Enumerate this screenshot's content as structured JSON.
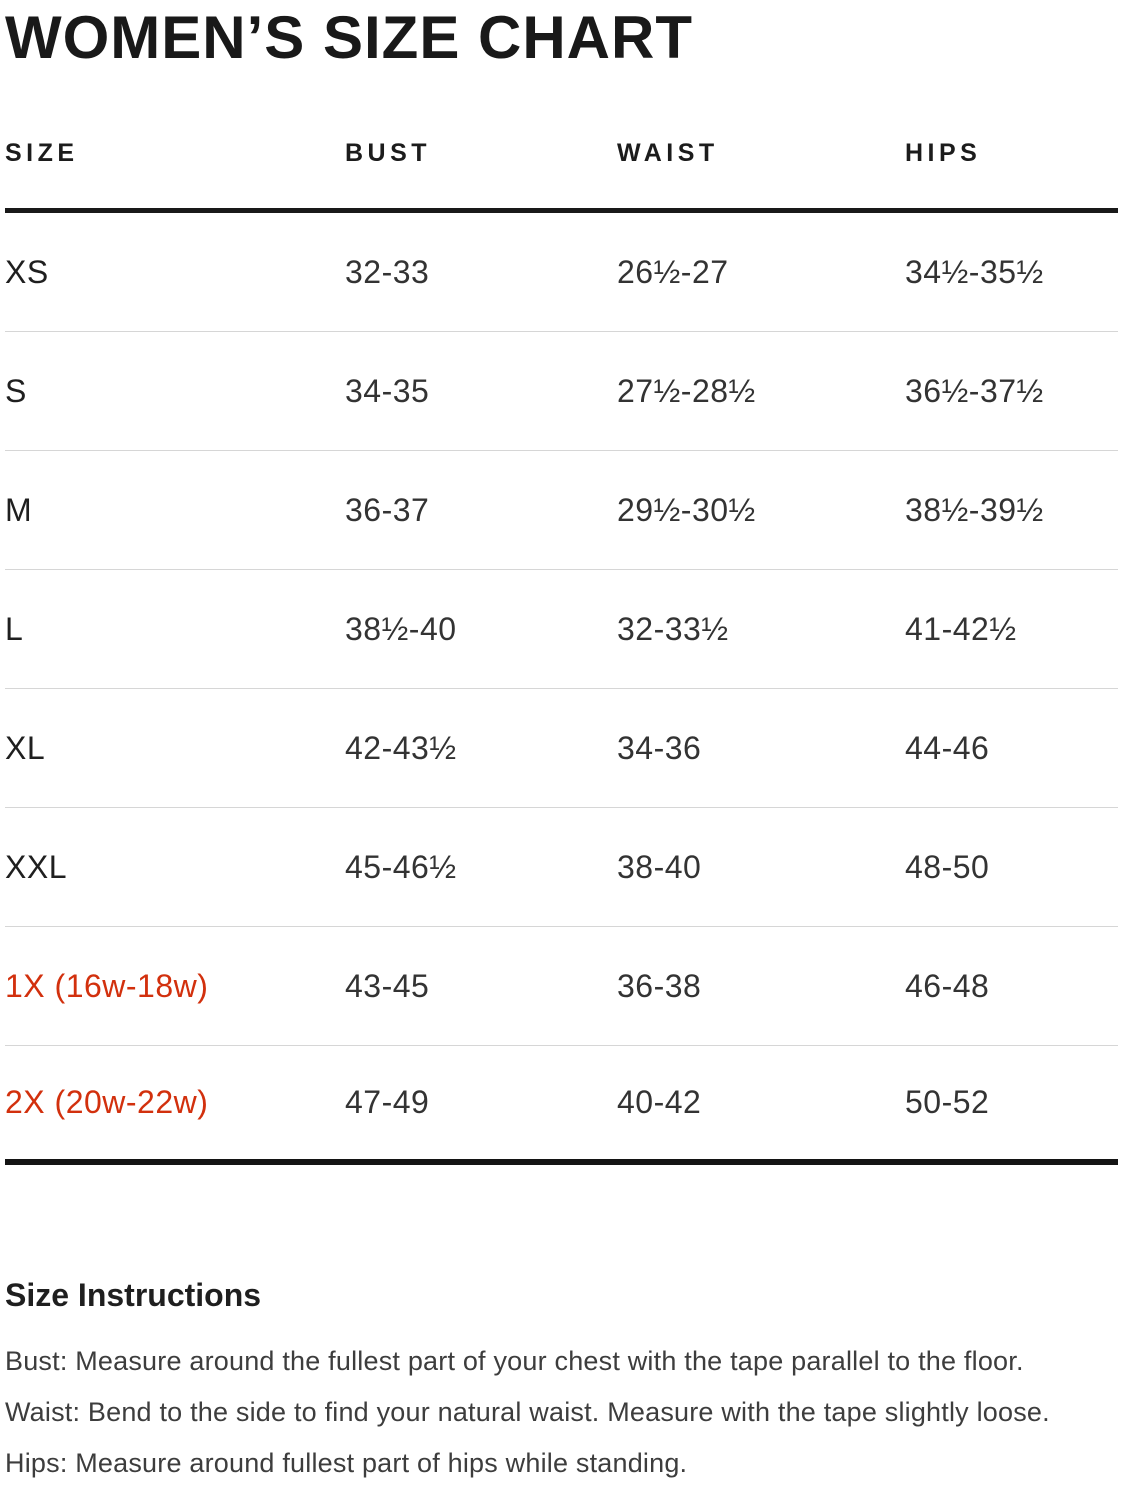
{
  "title": "WOMEN’S SIZE CHART",
  "colors": {
    "accent": "#d2300d",
    "text": "#1f1f1f",
    "divider": "#d6d6d6",
    "rule": "#191919"
  },
  "table": {
    "headers": [
      "SIZE",
      "BUST",
      "WAIST",
      "HIPS"
    ],
    "rows": [
      {
        "size": "XS",
        "bust": "32-33",
        "waist": "26½-27",
        "hips": "34½-35½",
        "accent": false
      },
      {
        "size": "S",
        "bust": "34-35",
        "waist": "27½-28½",
        "hips": "36½-37½",
        "accent": false
      },
      {
        "size": "M",
        "bust": "36-37",
        "waist": "29½-30½",
        "hips": "38½-39½",
        "accent": false
      },
      {
        "size": "L",
        "bust": "38½-40",
        "waist": "32-33½",
        "hips": "41-42½",
        "accent": false
      },
      {
        "size": "XL",
        "bust": "42-43½",
        "waist": "34-36",
        "hips": "44-46",
        "accent": false
      },
      {
        "size": "XXL",
        "bust": "45-46½",
        "waist": "38-40",
        "hips": "48-50",
        "accent": false
      },
      {
        "size": "1X (16w-18w)",
        "bust": "43-45",
        "waist": "36-38",
        "hips": "46-48",
        "accent": true
      },
      {
        "size": "2X (20w-22w)",
        "bust": "47-49",
        "waist": "40-42",
        "hips": "50-52",
        "accent": true
      }
    ]
  },
  "instructions": {
    "heading": "Size Instructions",
    "lines": [
      "Bust: Measure around the fullest part of your chest with the tape parallel to the floor.",
      "Waist: Bend to the side to find your natural waist. Measure with the tape slightly loose.",
      "Hips: Measure around fullest part of hips while standing."
    ]
  }
}
